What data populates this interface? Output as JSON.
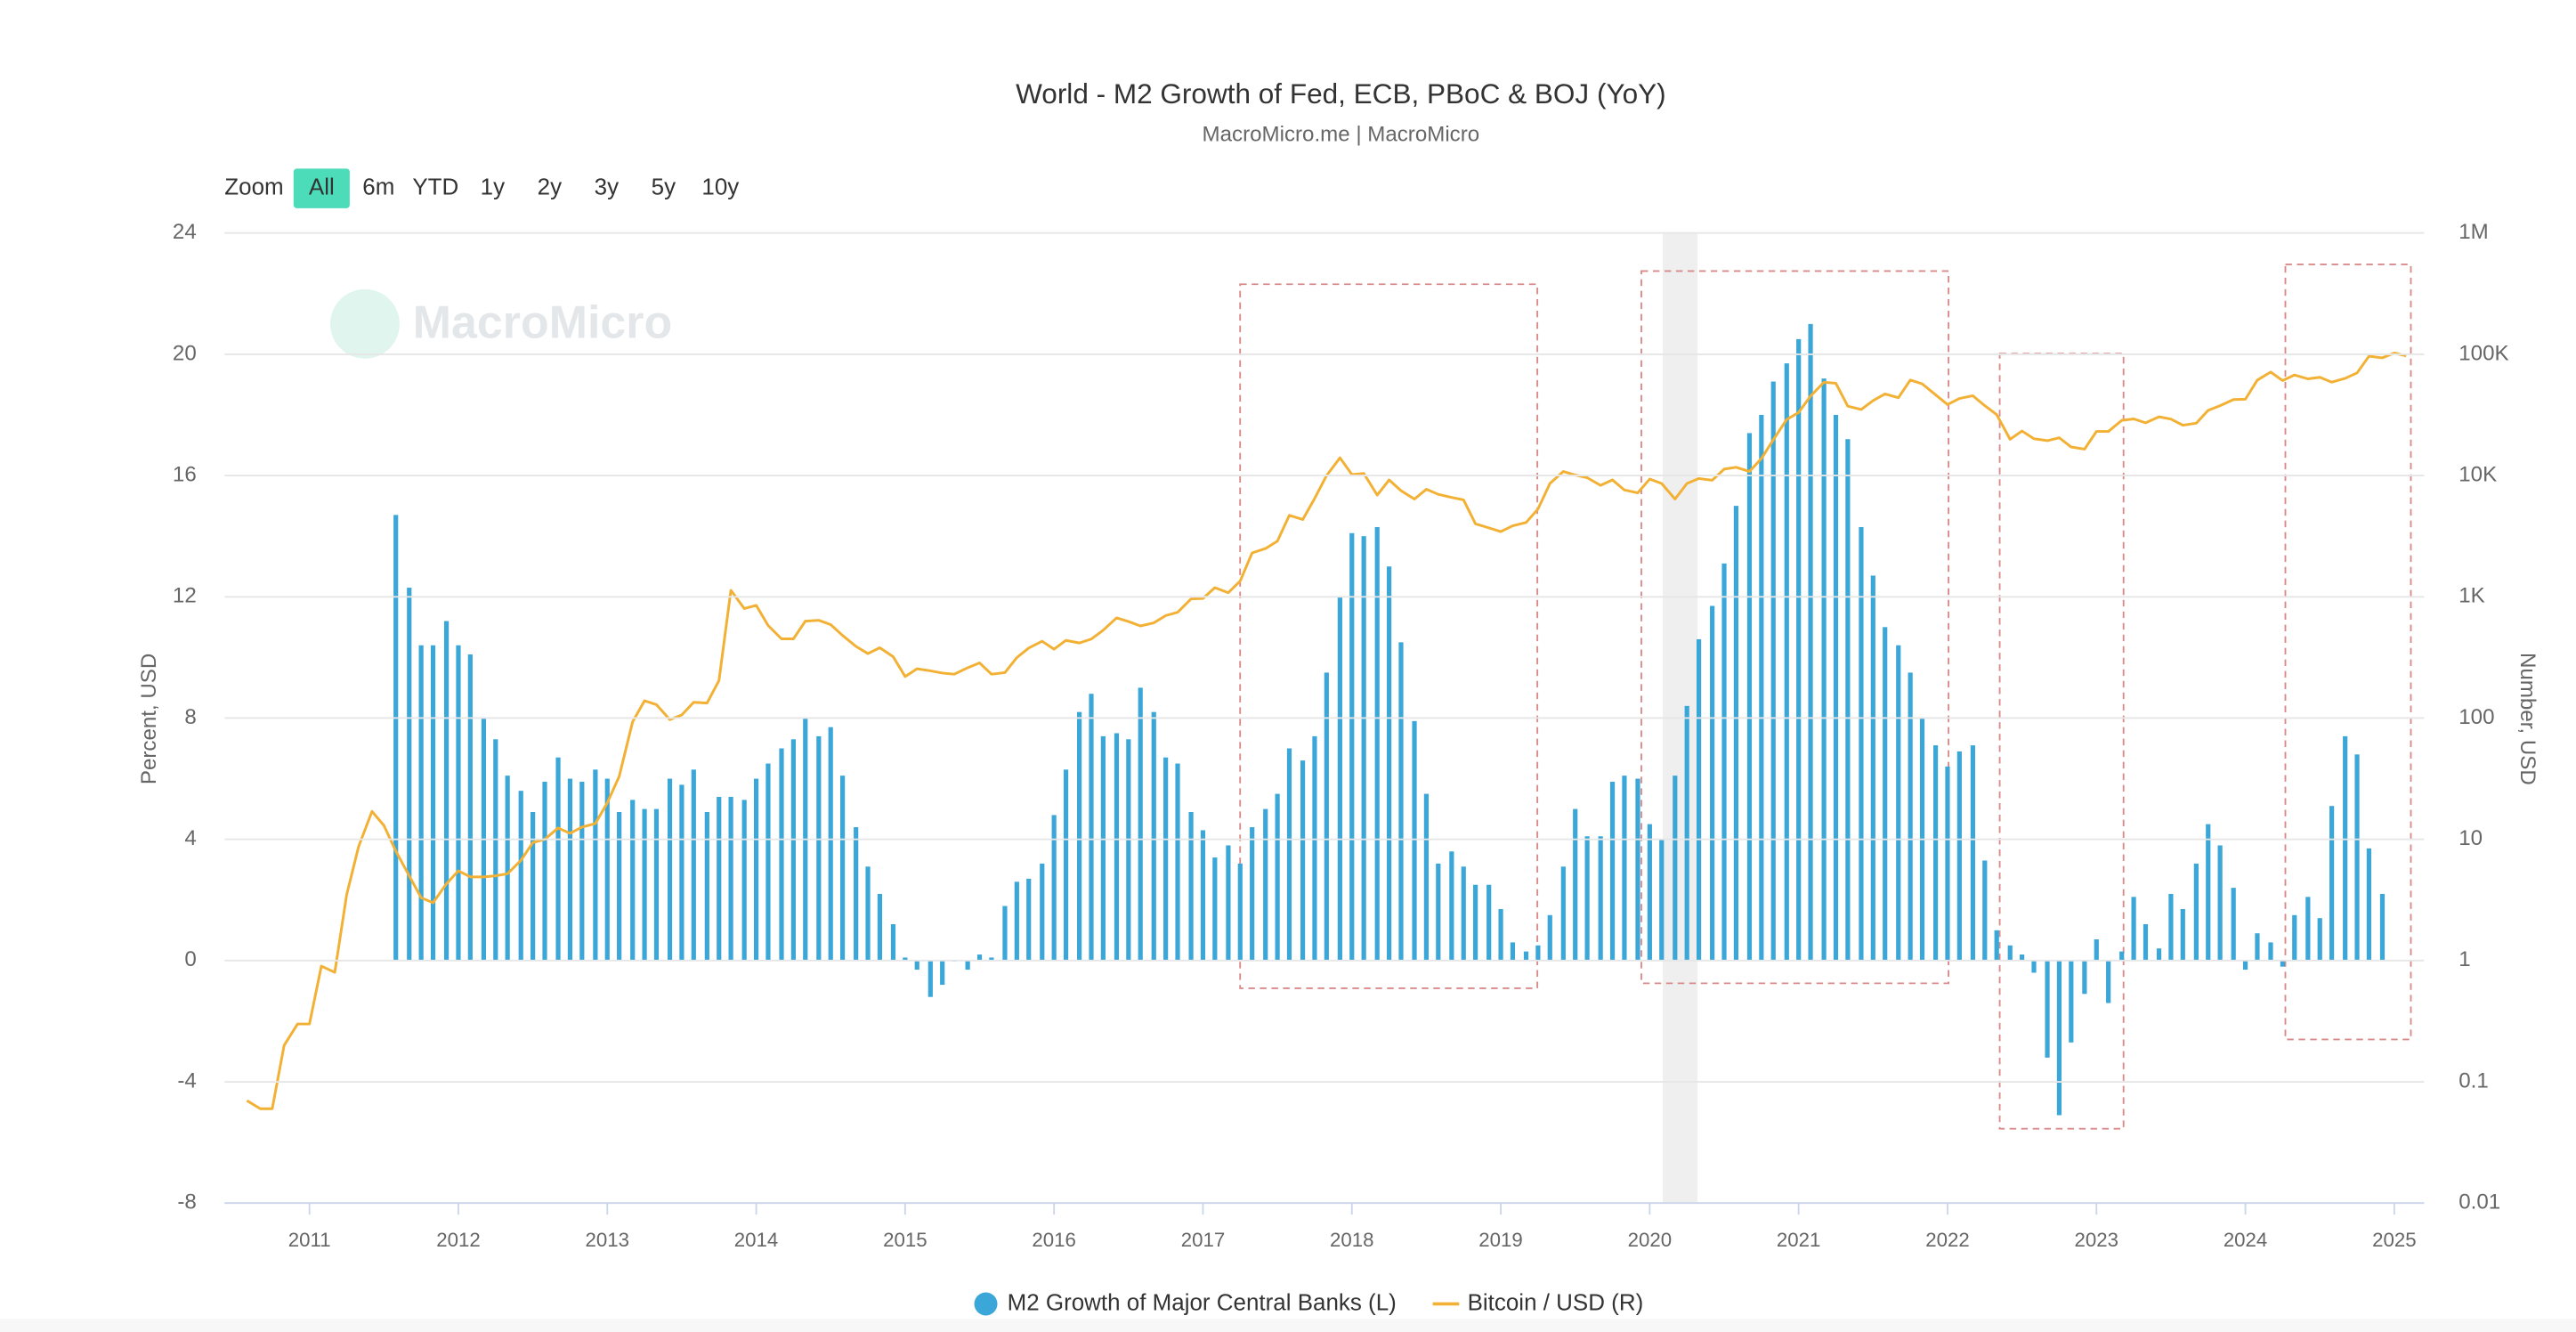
{
  "chart_data": {
    "type": "combo",
    "title": "World - M2 Growth of Fed, ECB, PBoC & BOJ (YoY)",
    "subtitle": "MacroMicro.me | MacroMicro",
    "watermark": "MacroMicro",
    "y_label": "Percent, USD",
    "y2_label": "Number, USD",
    "xlim": [
      2010.43,
      2025.2
    ],
    "xticks": [
      2011,
      2012,
      2013,
      2014,
      2015,
      2016,
      2017,
      2018,
      2019,
      2020,
      2021,
      2022,
      2023,
      2024,
      2025
    ],
    "ylim": [
      -8,
      24
    ],
    "yticks": [
      -8,
      -4,
      0,
      4,
      8,
      12,
      16,
      20,
      24
    ],
    "y2lim": [
      0.01,
      1000000
    ],
    "y2scale": "log",
    "y2ticks": [
      0.01,
      0.1,
      1,
      10,
      100,
      {
        "value": 1000,
        "label": "1K"
      },
      {
        "value": 10000,
        "label": "10K"
      },
      {
        "value": 100000,
        "label": "100K"
      },
      {
        "value": 1000000,
        "label": "1M"
      }
    ],
    "grid": true,
    "legend": "bottom",
    "series": [
      {
        "name": "M2 Growth of Major Central Banks (L)",
        "type": "bar",
        "color": "#3aa7d8",
        "x": [
          2011.58,
          2011.67,
          2011.75,
          2011.83,
          2011.92,
          2012.0,
          2012.08,
          2012.17,
          2012.25,
          2012.33,
          2012.42,
          2012.5,
          2012.58,
          2012.67,
          2012.75,
          2012.83,
          2012.92,
          2013.0,
          2013.08,
          2013.17,
          2013.25,
          2013.33,
          2013.42,
          2013.5,
          2013.58,
          2013.67,
          2013.75,
          2013.83,
          2013.92,
          2014.0,
          2014.08,
          2014.17,
          2014.25,
          2014.33,
          2014.42,
          2014.5,
          2014.58,
          2014.67,
          2014.75,
          2014.83,
          2014.92,
          2015.0,
          2015.08,
          2015.17,
          2015.25,
          2015.33,
          2015.42,
          2015.5,
          2015.58,
          2015.67,
          2015.75,
          2015.83,
          2015.92,
          2016.0,
          2016.08,
          2016.17,
          2016.25,
          2016.33,
          2016.42,
          2016.5,
          2016.58,
          2016.67,
          2016.75,
          2016.83,
          2016.92,
          2017.0,
          2017.08,
          2017.17,
          2017.25,
          2017.33,
          2017.42,
          2017.5,
          2017.58,
          2017.67,
          2017.75,
          2017.83,
          2017.92,
          2018.0,
          2018.08,
          2018.17,
          2018.25,
          2018.33,
          2018.42,
          2018.5,
          2018.58,
          2018.67,
          2018.75,
          2018.83,
          2018.92,
          2019.0,
          2019.08,
          2019.17,
          2019.25,
          2019.33,
          2019.42,
          2019.5,
          2019.58,
          2019.67,
          2019.75,
          2019.83,
          2019.92,
          2020.0,
          2020.08,
          2020.17,
          2020.25,
          2020.33,
          2020.42,
          2020.5,
          2020.58,
          2020.67,
          2020.75,
          2020.83,
          2020.92,
          2021.0,
          2021.08,
          2021.17,
          2021.25,
          2021.33,
          2021.42,
          2021.5,
          2021.58,
          2021.67,
          2021.75,
          2021.83,
          2021.92,
          2022.0,
          2022.08,
          2022.17,
          2022.25,
          2022.33,
          2022.42,
          2022.5,
          2022.58,
          2022.67,
          2022.75,
          2022.83,
          2022.92,
          2023.0,
          2023.08,
          2023.17,
          2023.25,
          2023.33,
          2023.42,
          2023.5,
          2023.58,
          2023.67,
          2023.75,
          2023.83,
          2023.92,
          2024.0,
          2024.08,
          2024.17,
          2024.25,
          2024.33,
          2024.42,
          2024.5,
          2024.58,
          2024.67,
          2024.75,
          2024.83,
          2024.92
        ],
        "values": [
          14.7,
          12.3,
          10.4,
          10.4,
          11.2,
          10.4,
          10.1,
          8.0,
          7.3,
          6.1,
          5.6,
          4.9,
          5.9,
          6.7,
          6.0,
          5.9,
          6.3,
          6.0,
          4.9,
          5.3,
          5.0,
          5.0,
          6.0,
          5.8,
          6.3,
          4.9,
          5.4,
          5.4,
          5.3,
          6.0,
          6.5,
          7.0,
          7.3,
          8.0,
          7.4,
          7.7,
          6.1,
          4.4,
          3.1,
          2.2,
          1.2,
          0.1,
          -0.3,
          -1.2,
          -0.8,
          0.0,
          -0.3,
          0.2,
          0.1,
          1.8,
          2.6,
          2.7,
          3.2,
          4.8,
          6.3,
          8.2,
          8.8,
          7.4,
          7.5,
          7.3,
          9.0,
          8.2,
          6.7,
          6.5,
          4.9,
          4.3,
          3.4,
          3.8,
          3.2,
          4.4,
          5.0,
          5.5,
          7.0,
          6.6,
          7.4,
          9.5,
          12.0,
          14.1,
          14.0,
          14.3,
          13.0,
          10.5,
          7.9,
          5.5,
          3.2,
          3.6,
          3.1,
          2.5,
          2.5,
          1.7,
          0.6,
          0.3,
          0.5,
          1.5,
          3.1,
          5.0,
          4.1,
          4.1,
          5.9,
          6.1,
          6.0,
          4.5,
          4.0,
          6.1,
          8.4,
          10.6,
          11.7,
          13.1,
          15.0,
          17.4,
          18.0,
          19.1,
          19.7,
          20.5,
          21.0,
          19.2,
          18.0,
          17.2,
          14.3,
          12.7,
          11.0,
          10.4,
          9.5,
          8.0,
          7.1,
          6.4,
          6.9,
          7.1,
          3.3,
          1.0,
          0.5,
          0.2,
          -0.4,
          -3.2,
          -5.1,
          -2.7,
          -1.1,
          0.7,
          -1.4,
          0.3,
          2.1,
          1.2,
          0.4,
          2.2,
          1.7,
          3.2,
          4.5,
          3.8,
          2.4,
          -0.3,
          0.9,
          0.6,
          -0.2,
          1.5,
          2.1,
          1.4,
          5.1,
          7.4,
          6.8,
          3.7,
          2.2
        ]
      },
      {
        "name": "Bitcoin / USD (R)",
        "type": "line",
        "axis": "y2",
        "color": "#f2b134",
        "x": [
          2010.58,
          2010.67,
          2010.75,
          2010.83,
          2010.92,
          2011.0,
          2011.08,
          2011.17,
          2011.25,
          2011.33,
          2011.42,
          2011.5,
          2011.58,
          2011.67,
          2011.75,
          2011.83,
          2011.92,
          2012.0,
          2012.08,
          2012.17,
          2012.25,
          2012.33,
          2012.42,
          2012.5,
          2012.58,
          2012.67,
          2012.75,
          2012.83,
          2012.92,
          2013.0,
          2013.08,
          2013.17,
          2013.25,
          2013.33,
          2013.42,
          2013.5,
          2013.58,
          2013.67,
          2013.75,
          2013.83,
          2013.92,
          2014.0,
          2014.08,
          2014.17,
          2014.25,
          2014.33,
          2014.42,
          2014.5,
          2014.58,
          2014.67,
          2014.75,
          2014.83,
          2014.92,
          2015.0,
          2015.08,
          2015.17,
          2015.25,
          2015.33,
          2015.42,
          2015.5,
          2015.58,
          2015.67,
          2015.75,
          2015.83,
          2015.92,
          2016.0,
          2016.08,
          2016.17,
          2016.25,
          2016.33,
          2016.42,
          2016.5,
          2016.58,
          2016.67,
          2016.75,
          2016.83,
          2016.92,
          2017.0,
          2017.08,
          2017.17,
          2017.25,
          2017.33,
          2017.42,
          2017.5,
          2017.58,
          2017.67,
          2017.75,
          2017.83,
          2017.92,
          2018.0,
          2018.08,
          2018.17,
          2018.25,
          2018.33,
          2018.42,
          2018.5,
          2018.58,
          2018.67,
          2018.75,
          2018.83,
          2018.92,
          2019.0,
          2019.08,
          2019.17,
          2019.25,
          2019.33,
          2019.42,
          2019.5,
          2019.58,
          2019.67,
          2019.75,
          2019.83,
          2019.92,
          2020.0,
          2020.08,
          2020.17,
          2020.25,
          2020.33,
          2020.42,
          2020.5,
          2020.58,
          2020.67,
          2020.75,
          2020.83,
          2020.92,
          2021.0,
          2021.08,
          2021.17,
          2021.25,
          2021.33,
          2021.42,
          2021.5,
          2021.58,
          2021.67,
          2021.75,
          2021.83,
          2021.92,
          2022.0,
          2022.08,
          2022.17,
          2022.25,
          2022.33,
          2022.42,
          2022.5,
          2022.58,
          2022.67,
          2022.75,
          2022.83,
          2022.92,
          2023.0,
          2023.08,
          2023.17,
          2023.25,
          2023.33,
          2023.42,
          2023.5,
          2023.58,
          2023.67,
          2023.75,
          2023.83,
          2023.92,
          2024.0,
          2024.08,
          2024.17,
          2024.25,
          2024.33,
          2024.42,
          2024.5,
          2024.58,
          2024.67,
          2024.75,
          2024.83,
          2024.92,
          2025.0,
          2025.08
        ],
        "values": [
          0.07,
          0.06,
          0.06,
          0.2,
          0.3,
          0.3,
          0.9,
          0.8,
          3.5,
          8.7,
          17,
          13,
          8,
          5,
          3.3,
          3,
          4.3,
          5.5,
          4.9,
          4.9,
          5,
          5.2,
          6.7,
          9.4,
          10,
          12.4,
          11.2,
          12.6,
          13.5,
          20,
          33,
          93,
          139,
          129,
          97,
          106,
          135,
          133,
          204,
          1130,
          800,
          850,
          580,
          450,
          450,
          630,
          640,
          590,
          480,
          390,
          340,
          380,
          320,
          220,
          255,
          245,
          235,
          230,
          260,
          285,
          230,
          237,
          315,
          378,
          430,
          370,
          437,
          416,
          448,
          530,
          670,
          625,
          575,
          610,
          700,
          745,
          960,
          970,
          1190,
          1080,
          1350,
          2300,
          2500,
          2880,
          4700,
          4340,
          6470,
          10000,
          14000,
          10200,
          10400,
          6900,
          9200,
          7500,
          6400,
          7700,
          7000,
          6600,
          6300,
          4000,
          3700,
          3450,
          3850,
          4100,
          5300,
          8600,
          10800,
          10100,
          9600,
          8300,
          9200,
          7600,
          7200,
          9350,
          8600,
          6400,
          8600,
          9450,
          9150,
          11300,
          11700,
          10800,
          13800,
          19700,
          29000,
          33100,
          45200,
          58800,
          57700,
          37300,
          35000,
          41500,
          47100,
          43800,
          61300,
          57000,
          46300,
          38500,
          43200,
          45500,
          37700,
          31800,
          19900,
          23300,
          20100,
          19400,
          20500,
          17200,
          16500,
          23100,
          23100,
          28500,
          29300,
          27200,
          30500,
          29200,
          26000,
          27000,
          34500,
          37700,
          42300,
          42600,
          61200,
          71300,
          60700,
          67500,
          62700,
          64600,
          58900,
          63300,
          70200,
          96400,
          93400,
          102400,
          97000
        ]
      }
    ]
  },
  "range_selector": {
    "label": "Zoom",
    "buttons": [
      "All",
      "6m",
      "YTD",
      "1y",
      "2y",
      "3y",
      "5y",
      "10y"
    ],
    "selected": 0
  }
}
